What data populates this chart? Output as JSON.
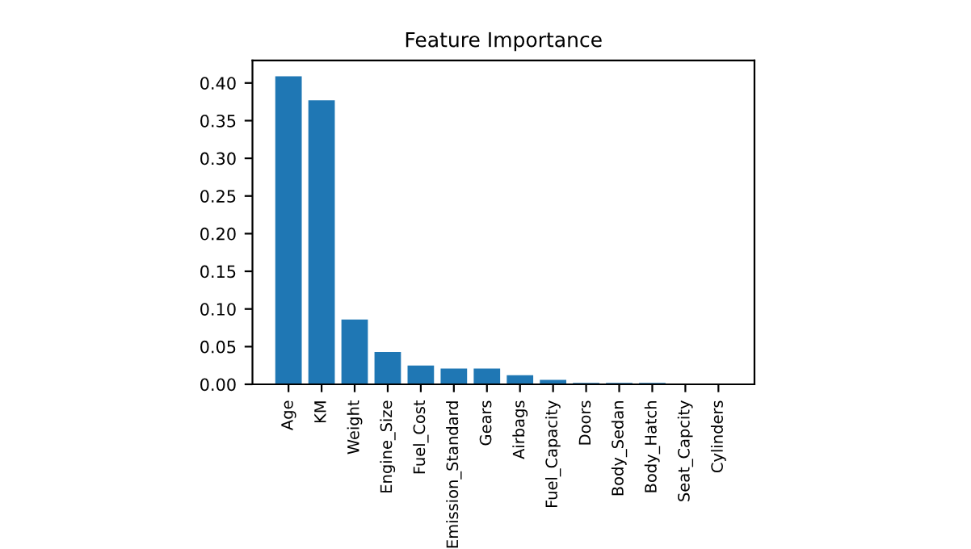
{
  "chart_data": {
    "type": "bar",
    "title": "Feature Importance",
    "categories": [
      "Age",
      "KM",
      "Weight",
      "Engine_Size",
      "Fuel_Cost",
      "Emission_Standard",
      "Gears",
      "Airbags",
      "Fuel_Capacity",
      "Doors",
      "Body_Sedan",
      "Body_Hatch",
      "Seat_Capcity",
      "Cylinders"
    ],
    "values": [
      0.409,
      0.377,
      0.086,
      0.043,
      0.025,
      0.021,
      0.021,
      0.012,
      0.006,
      0.002,
      0.002,
      0.002,
      0.0,
      0.0
    ],
    "color": "#1f77b4",
    "ylim": [
      0,
      0.43
    ],
    "yticks": [
      {
        "value": 0,
        "label": "0.00"
      },
      {
        "value": 0.05,
        "label": "0.05"
      },
      {
        "value": 0.1,
        "label": "0.10"
      },
      {
        "value": 0.15,
        "label": "0.15"
      },
      {
        "value": 0.2,
        "label": "0.20"
      },
      {
        "value": 0.25,
        "label": "0.25"
      },
      {
        "value": 0.3,
        "label": "0.30"
      },
      {
        "value": 0.35,
        "label": "0.35"
      },
      {
        "value": 0.4,
        "label": "0.40"
      }
    ],
    "grid": false
  }
}
